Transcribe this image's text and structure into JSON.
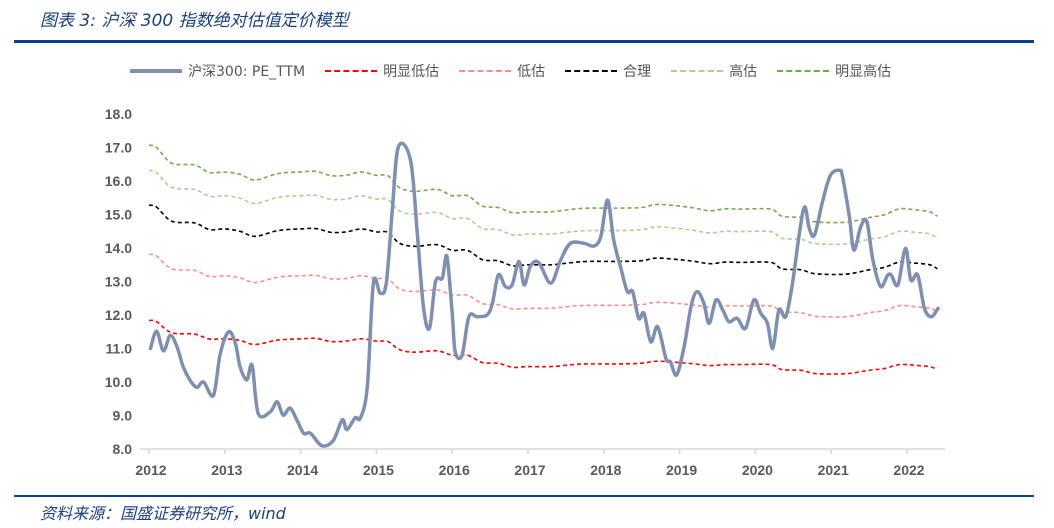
{
  "header": {
    "title": "图表 3:  沪深 300 指数绝对估值定价模型"
  },
  "footer": {
    "source": "资料来源：国盛证券研究所，wind"
  },
  "chart_data": {
    "type": "line",
    "title": "",
    "xlabel": "",
    "ylabel": "",
    "ylim": [
      8.0,
      18.0
    ],
    "yticks": [
      "18.0",
      "17.0",
      "16.0",
      "15.0",
      "14.0",
      "13.0",
      "12.0",
      "11.0",
      "10.0",
      "9.0",
      "8.0"
    ],
    "xticks": [
      "2012",
      "2013",
      "2014",
      "2015",
      "2016",
      "2017",
      "2018",
      "2019",
      "2020",
      "2021",
      "2022"
    ],
    "grid": false,
    "legend": "top",
    "pe": {
      "name": "沪深300:  PE_TTM",
      "color": "#7f8fb0",
      "x": [
        2012.02,
        2012.1,
        2012.19,
        2012.28,
        2012.37,
        2012.45,
        2012.54,
        2012.63,
        2012.72,
        2012.85,
        2012.94,
        2013.05,
        2013.14,
        2013.2,
        2013.29,
        2013.36,
        2013.44,
        2013.6,
        2013.69,
        2013.77,
        2013.86,
        2013.95,
        2014.04,
        2014.13,
        2014.28,
        2014.43,
        2014.55,
        2014.61,
        2014.72,
        2014.79,
        2014.88,
        2014.96,
        2015.05,
        2015.13,
        2015.21,
        2015.29,
        2015.45,
        2015.54,
        2015.62,
        2015.7,
        2015.78,
        2015.87,
        2015.93,
        2016.0,
        2016.04,
        2016.13,
        2016.22,
        2016.33,
        2016.46,
        2016.53,
        2016.61,
        2016.7,
        2016.79,
        2016.88,
        2016.95,
        2017.03,
        2017.14,
        2017.3,
        2017.43,
        2017.56,
        2017.74,
        2017.87,
        2017.96,
        2018.05,
        2018.13,
        2018.22,
        2018.31,
        2018.38,
        2018.46,
        2018.53,
        2018.62,
        2018.71,
        2018.82,
        2018.88,
        2018.96,
        2019.06,
        2019.15,
        2019.23,
        2019.32,
        2019.39,
        2019.48,
        2019.57,
        2019.65,
        2019.76,
        2019.87,
        2019.98,
        2020.07,
        2020.16,
        2020.23,
        2020.31,
        2020.4,
        2020.49,
        2020.58,
        2020.65,
        2020.71,
        2020.78,
        2020.89,
        2020.99,
        2021.11,
        2021.15,
        2021.24,
        2021.3,
        2021.39,
        2021.47,
        2021.55,
        2021.65,
        2021.74,
        2021.79,
        2021.88,
        2021.98,
        2022.05,
        2022.14,
        2022.23,
        2022.32,
        2022.41
      ],
      "values": [
        11.0,
        11.52,
        10.93,
        11.39,
        11.05,
        10.46,
        10.06,
        9.84,
        10.0,
        9.6,
        10.85,
        11.5,
        11.15,
        10.46,
        10.06,
        10.5,
        9.06,
        9.11,
        9.41,
        9.01,
        9.22,
        8.87,
        8.47,
        8.47,
        8.1,
        8.25,
        8.87,
        8.58,
        8.93,
        8.93,
        9.86,
        12.95,
        12.65,
        12.95,
        15.13,
        17.02,
        16.62,
        14.43,
        12.25,
        11.6,
        13.0,
        13.1,
        13.75,
        12.05,
        10.9,
        10.8,
        11.95,
        11.95,
        12.0,
        12.35,
        13.2,
        12.85,
        12.9,
        13.6,
        12.9,
        13.45,
        13.57,
        12.95,
        13.64,
        14.14,
        14.14,
        14.06,
        14.34,
        15.43,
        14.24,
        13.44,
        12.7,
        12.7,
        11.9,
        12.05,
        11.2,
        11.65,
        10.7,
        10.6,
        10.21,
        11.05,
        12.25,
        12.7,
        12.35,
        11.75,
        12.45,
        12.15,
        11.8,
        11.9,
        11.6,
        12.45,
        12.05,
        11.75,
        11.0,
        12.15,
        11.95,
        12.95,
        14.44,
        15.23,
        14.59,
        14.39,
        15.43,
        16.17,
        16.32,
        16.12,
        14.93,
        13.94,
        14.64,
        14.79,
        13.64,
        12.85,
        13.17,
        13.2,
        12.9,
        13.99,
        13.04,
        13.2,
        12.2,
        11.95,
        12.2
      ]
    },
    "band_x": [
      2012.0,
      2012.1,
      2012.3,
      2012.6,
      2012.8,
      2013.0,
      2013.2,
      2013.4,
      2013.7,
      2014.0,
      2014.2,
      2014.4,
      2014.6,
      2014.8,
      2015.0,
      2015.15,
      2015.3,
      2015.5,
      2015.8,
      2016.0,
      2016.2,
      2016.4,
      2016.6,
      2016.8,
      2017.0,
      2017.3,
      2017.6,
      2017.8,
      2018.2,
      2018.5,
      2018.7,
      2019.0,
      2019.2,
      2019.4,
      2019.6,
      2019.8,
      2020.2,
      2020.35,
      2020.6,
      2020.8,
      2021.2,
      2021.5,
      2021.7,
      2021.9,
      2022.1,
      2022.3,
      2022.4
    ],
    "series": [
      {
        "name": "明显低估",
        "color": "#ff0000",
        "values": [
          11.84,
          11.8,
          11.47,
          11.43,
          11.28,
          11.29,
          11.24,
          11.12,
          11.25,
          11.29,
          11.3,
          11.21,
          11.22,
          11.29,
          11.22,
          11.21,
          10.97,
          10.89,
          10.93,
          10.8,
          10.8,
          10.58,
          10.56,
          10.44,
          10.46,
          10.46,
          10.52,
          10.54,
          10.54,
          10.56,
          10.62,
          10.58,
          10.54,
          10.49,
          10.52,
          10.52,
          10.52,
          10.37,
          10.35,
          10.25,
          10.25,
          10.35,
          10.4,
          10.52,
          10.5,
          10.46,
          10.37
        ]
      },
      {
        "name": "低估",
        "color": "#ff8b8b",
        "values": [
          13.81,
          13.76,
          13.38,
          13.33,
          13.15,
          13.17,
          13.11,
          12.97,
          13.13,
          13.17,
          13.18,
          13.08,
          13.09,
          13.17,
          13.09,
          13.08,
          12.79,
          12.7,
          12.75,
          12.59,
          12.59,
          12.34,
          12.31,
          12.18,
          12.2,
          12.2,
          12.27,
          12.29,
          12.29,
          12.31,
          12.38,
          12.34,
          12.29,
          12.23,
          12.28,
          12.27,
          12.27,
          12.1,
          12.07,
          11.96,
          11.95,
          12.07,
          12.13,
          12.28,
          12.25,
          12.2,
          12.1
        ]
      },
      {
        "name": "合理",
        "color": "#000000",
        "values": [
          15.28,
          15.22,
          14.8,
          14.75,
          14.55,
          14.57,
          14.5,
          14.35,
          14.52,
          14.57,
          14.58,
          14.47,
          14.48,
          14.57,
          14.48,
          14.47,
          14.15,
          14.05,
          14.1,
          13.93,
          13.93,
          13.65,
          13.62,
          13.47,
          13.5,
          13.5,
          13.57,
          13.6,
          13.6,
          13.62,
          13.7,
          13.65,
          13.6,
          13.53,
          13.58,
          13.57,
          13.57,
          13.38,
          13.35,
          13.23,
          13.22,
          13.35,
          13.42,
          13.58,
          13.55,
          13.5,
          13.38
        ]
      },
      {
        "name": "高估",
        "color": "#a9d18e",
        "values": [
          16.32,
          16.25,
          15.81,
          15.75,
          15.54,
          15.56,
          15.49,
          15.33,
          15.51,
          15.56,
          15.57,
          15.45,
          15.46,
          15.56,
          15.46,
          15.45,
          15.11,
          15.01,
          15.06,
          14.88,
          14.88,
          14.58,
          14.55,
          14.39,
          14.42,
          14.42,
          14.49,
          14.52,
          14.52,
          14.55,
          14.63,
          14.58,
          14.52,
          14.45,
          14.5,
          14.49,
          14.49,
          14.29,
          14.26,
          14.13,
          14.12,
          14.26,
          14.33,
          14.5,
          14.47,
          14.42,
          14.29
        ]
      },
      {
        "name": "明显高估",
        "color": "#70ad47",
        "values": [
          17.07,
          17.0,
          16.53,
          16.48,
          16.25,
          16.27,
          16.2,
          16.03,
          16.22,
          16.27,
          16.29,
          16.16,
          16.17,
          16.27,
          16.17,
          16.16,
          15.81,
          15.69,
          15.75,
          15.56,
          15.56,
          15.25,
          15.21,
          15.05,
          15.08,
          15.08,
          15.16,
          15.19,
          15.19,
          15.21,
          15.3,
          15.25,
          15.19,
          15.11,
          15.17,
          15.16,
          15.16,
          14.95,
          14.91,
          14.78,
          14.77,
          14.91,
          14.99,
          15.17,
          15.14,
          15.08,
          14.95
        ]
      }
    ]
  }
}
